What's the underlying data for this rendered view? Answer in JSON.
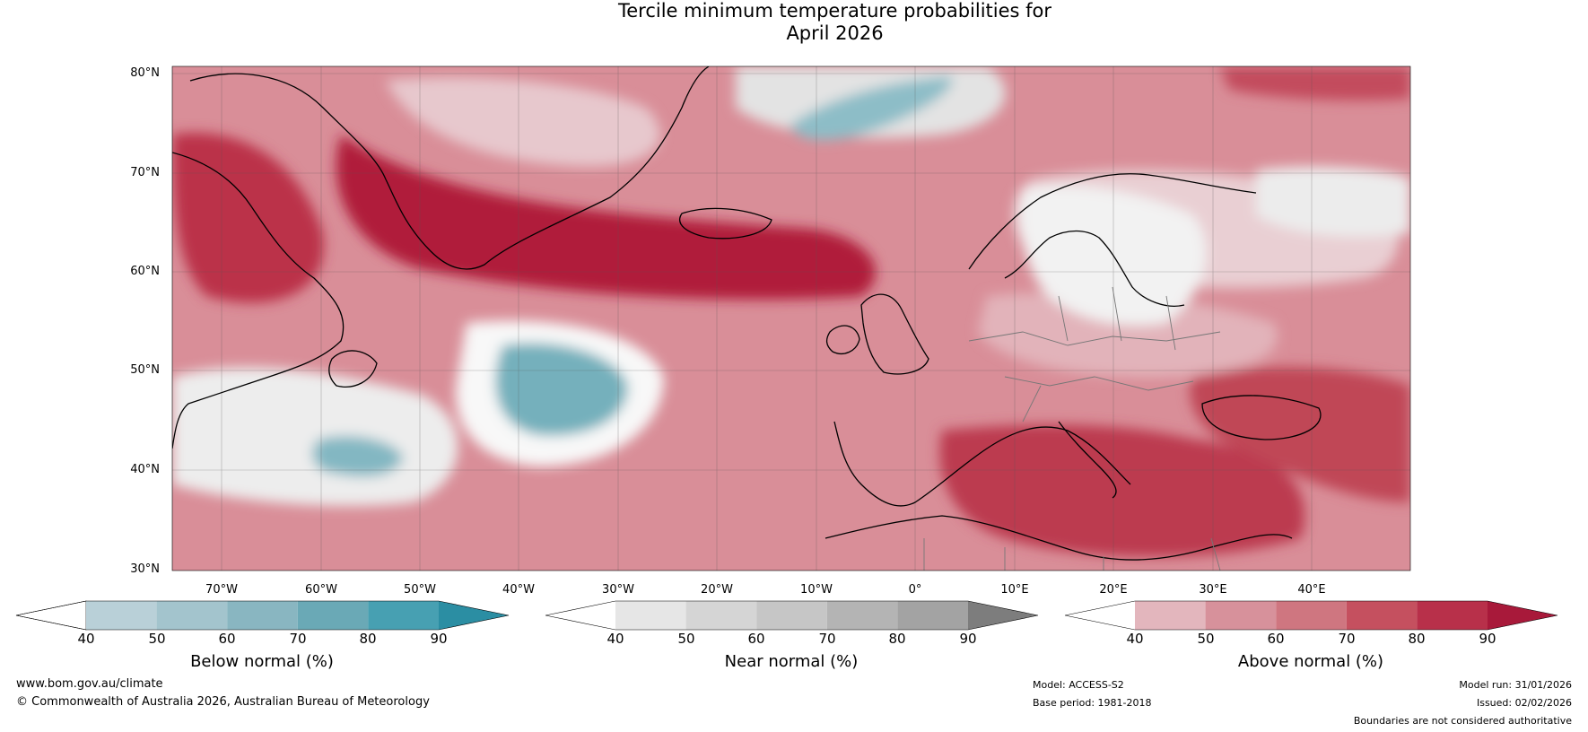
{
  "title": {
    "line1": "Tercile minimum temperature probabilities for",
    "line2": "April 2026"
  },
  "map": {
    "lat_labels": [
      "80°N",
      "70°N",
      "60°N",
      "50°N",
      "40°N",
      "30°N"
    ],
    "lon_labels": [
      "70°W",
      "60°W",
      "50°W",
      "40°W",
      "30°W",
      "20°W",
      "10°W",
      "0°",
      "10°E",
      "20°E",
      "30°E",
      "40°E"
    ],
    "lat_range": [
      30,
      81
    ],
    "lon_range": [
      -77.5,
      47.5
    ]
  },
  "colorbars": [
    {
      "id": "below",
      "title": "Below normal (%)",
      "ticks": [
        "40",
        "50",
        "60",
        "70",
        "80",
        "90"
      ],
      "colors": [
        "#ffffff",
        "#b9d0d8",
        "#a3c4cd",
        "#89b6c1",
        "#6aa9b6",
        "#47a0b2",
        "#2b8ea3"
      ]
    },
    {
      "id": "near",
      "title": "Near normal (%)",
      "ticks": [
        "40",
        "50",
        "60",
        "70",
        "80",
        "90"
      ],
      "colors": [
        "#ffffff",
        "#e6e6e6",
        "#d5d5d5",
        "#c6c6c6",
        "#b4b4b4",
        "#a3a3a3",
        "#7d7d7d"
      ]
    },
    {
      "id": "above",
      "title": "Above normal (%)",
      "ticks": [
        "40",
        "50",
        "60",
        "70",
        "80",
        "90"
      ],
      "colors": [
        "#ffffff",
        "#e3b6bd",
        "#d7919b",
        "#cf7680",
        "#c5505f",
        "#b8304a",
        "#a8193a"
      ]
    }
  ],
  "footer": {
    "website": "www.bom.gov.au/climate",
    "copyright": "© Commonwealth of Australia 2026, Australian Bureau of Meteorology",
    "model": "Model: ACCESS-S2",
    "base_period": "Base period: 1981-2018",
    "model_run": "Model run: 31/01/2026",
    "issued": "Issued: 02/02/2026",
    "disclaimer": "Boundaries are not considered authoritative"
  }
}
